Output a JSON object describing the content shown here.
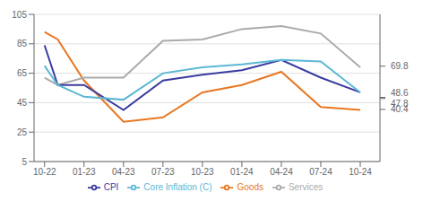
{
  "chart_data": {
    "type": "line",
    "x": [
      0,
      1,
      3,
      6,
      9,
      12,
      15,
      18,
      21,
      24
    ],
    "series": [
      {
        "name": "Goods",
        "color": "#E87722",
        "values": [
          93,
          88,
          60,
          32,
          35,
          52,
          57,
          66,
          42,
          40
        ]
      },
      {
        "name": "Services",
        "color": "#AAAAAA",
        "values": [
          62,
          57,
          62,
          62,
          87,
          88,
          95,
          97,
          92,
          69
        ]
      },
      {
        "name": "CPI",
        "color": "#3B3BA0",
        "values": [
          84,
          57,
          57,
          40,
          60,
          64,
          67,
          74,
          62,
          52
        ]
      },
      {
        "name": "Core Inflation (C)",
        "color": "#5BB8D4",
        "values": [
          70,
          57,
          49,
          47,
          65,
          69,
          71,
          74,
          73,
          52
        ]
      }
    ],
    "xlim": [
      -0.8,
      25.5
    ],
    "xticks": [
      {
        "value": 0,
        "label": "10-22"
      },
      {
        "value": 3,
        "label": "01-23"
      },
      {
        "value": 6,
        "label": "04-23"
      },
      {
        "value": 9,
        "label": "07-23"
      },
      {
        "value": 12,
        "label": "10-23"
      },
      {
        "value": 15,
        "label": "01-24"
      },
      {
        "value": 18,
        "label": "04-24"
      },
      {
        "value": 21,
        "label": "07-24"
      },
      {
        "value": 24,
        "label": "10-24"
      }
    ],
    "ylim": [
      5,
      105
    ],
    "yticks": [
      5,
      25,
      45,
      65,
      85,
      105
    ],
    "y2lim": [
      5,
      105
    ],
    "y2ticks": [
      69.8,
      48.6,
      47.8,
      40.4
    ],
    "grid": true,
    "legend": "bottom"
  }
}
